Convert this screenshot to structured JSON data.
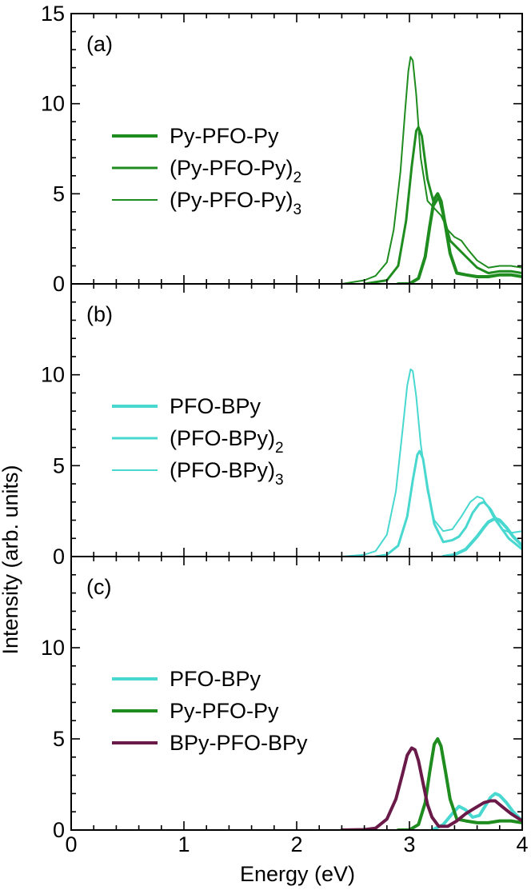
{
  "chart_data": {
    "type": "line",
    "xlabel": "Energy (eV)",
    "ylabel": "Intensity (arb. units)",
    "xlim": [
      0,
      4
    ],
    "x_ticks": [
      "0",
      "1",
      "2",
      "3",
      "4"
    ],
    "colors": {
      "green": "#1e8c1e",
      "cyan": "#48d8d0",
      "maroon": "#6a1a48"
    },
    "panels": [
      {
        "label": "(a)",
        "ylim": [
          0,
          15
        ],
        "y_ticks": [
          {
            "value": 0,
            "label": "0"
          },
          {
            "value": 5,
            "label": "5"
          },
          {
            "value": 10,
            "label": "10"
          },
          {
            "value": 15,
            "label": "15"
          }
        ],
        "series": [
          {
            "name": "Py-PFO-Py",
            "sub": "",
            "color": "#1e8c1e",
            "width": 4,
            "x": [
              2.9,
              3.0,
              3.08,
              3.14,
              3.18,
              3.22,
              3.25,
              3.28,
              3.32,
              3.36,
              3.42,
              3.5,
              3.6,
              3.7,
              3.8,
              3.9,
              4.0
            ],
            "y": [
              0,
              0.01,
              0.3,
              1.5,
              3.2,
              4.7,
              5.0,
              4.6,
              3.2,
              1.7,
              0.6,
              0.5,
              0.4,
              0.4,
              0.5,
              0.5,
              0.4
            ]
          },
          {
            "name": "(Py-PFO-Py)",
            "sub": "2",
            "color": "#1e8c1e",
            "width": 3,
            "x": [
              2.6,
              2.8,
              2.9,
              2.97,
              3.02,
              3.06,
              3.08,
              3.11,
              3.16,
              3.22,
              3.26,
              3.3,
              3.36,
              3.44,
              3.52,
              3.6,
              3.7,
              3.8,
              3.9,
              4.0
            ],
            "y": [
              0,
              0.2,
              1.0,
              3.5,
              6.5,
              8.5,
              8.7,
              8.2,
              5.8,
              4.4,
              4.8,
              3.8,
              2.4,
              1.9,
              1.4,
              0.9,
              0.6,
              0.7,
              0.7,
              0.6
            ]
          },
          {
            "name": "(Py-PFO-Py)",
            "sub": "3",
            "color": "#1e8c1e",
            "width": 2,
            "x": [
              2.4,
              2.6,
              2.7,
              2.8,
              2.86,
              2.92,
              2.96,
              2.99,
              3.01,
              3.03,
              3.06,
              3.1,
              3.16,
              3.22,
              3.28,
              3.34,
              3.4,
              3.46,
              3.52,
              3.6,
              3.7,
              3.8,
              3.9,
              4.0
            ],
            "y": [
              0,
              0.2,
              0.45,
              1.2,
              3.0,
              6.2,
              9.5,
              11.8,
              12.6,
              12.4,
              10.5,
              7.0,
              4.6,
              4.2,
              3.8,
              3.0,
              2.6,
              2.4,
              1.9,
              1.3,
              0.9,
              1.0,
              1.0,
              0.9
            ]
          }
        ]
      },
      {
        "label": "(b)",
        "ylim": [
          0,
          15
        ],
        "y_ticks": [
          {
            "value": 0,
            "label": "0"
          },
          {
            "value": 5,
            "label": "5"
          },
          {
            "value": 10,
            "label": "10"
          }
        ],
        "series": [
          {
            "name": "PFO-BPy",
            "sub": "",
            "color": "#48d8d0",
            "width": 4,
            "x": [
              3.3,
              3.4,
              3.5,
              3.6,
              3.66,
              3.7,
              3.76,
              3.8,
              3.86,
              3.92,
              4.0
            ],
            "y": [
              0,
              0.1,
              0.4,
              1.1,
              1.6,
              1.9,
              2.1,
              2.0,
              1.6,
              1.1,
              0.6
            ]
          },
          {
            "name": "(PFO-BPy)",
            "sub": "2",
            "color": "#48d8d0",
            "width": 3,
            "x": [
              2.7,
              2.8,
              2.9,
              2.98,
              3.03,
              3.07,
              3.09,
              3.12,
              3.16,
              3.22,
              3.3,
              3.38,
              3.44,
              3.5,
              3.56,
              3.62,
              3.66,
              3.72,
              3.8,
              3.88,
              4.0
            ],
            "y": [
              0,
              0.1,
              0.6,
              2.2,
              4.2,
              5.6,
              5.8,
              5.4,
              3.8,
              1.8,
              0.8,
              0.9,
              1.1,
              1.6,
              2.4,
              2.9,
              3.0,
              2.6,
              1.7,
              1.0,
              0.4
            ]
          },
          {
            "name": "(PFO-BPy)",
            "sub": "3",
            "color": "#48d8d0",
            "width": 2,
            "x": [
              2.4,
              2.6,
              2.7,
              2.8,
              2.88,
              2.94,
              2.98,
              3.01,
              3.03,
              3.06,
              3.1,
              3.16,
              3.22,
              3.3,
              3.38,
              3.46,
              3.54,
              3.6,
              3.65,
              3.7,
              3.76,
              3.82,
              3.9,
              4.0
            ],
            "y": [
              0,
              0.1,
              0.3,
              1.2,
              3.6,
              7.0,
              9.4,
              10.3,
              10.2,
              8.8,
              6.2,
              3.6,
              2.0,
              1.4,
              1.5,
              2.2,
              3.0,
              3.3,
              3.2,
              2.7,
              2.0,
              1.5,
              1.3,
              1.4
            ]
          }
        ]
      },
      {
        "label": "(c)",
        "ylim": [
          0,
          15
        ],
        "y_ticks": [
          {
            "value": 0,
            "label": "0"
          },
          {
            "value": 5,
            "label": "5"
          },
          {
            "value": 10,
            "label": "10"
          }
        ],
        "series": [
          {
            "name": "PFO-BPy",
            "sub": "",
            "color": "#48d8d0",
            "width": 4,
            "x": [
              3.2,
              3.3,
              3.38,
              3.44,
              3.5,
              3.56,
              3.62,
              3.68,
              3.72,
              3.76,
              3.8,
              3.86,
              3.92,
              4.0
            ],
            "y": [
              0,
              0.3,
              0.9,
              1.3,
              1.1,
              0.7,
              0.8,
              1.4,
              1.8,
              2.0,
              1.9,
              1.5,
              1.0,
              0.5
            ]
          },
          {
            "name": "Py-PFO-Py",
            "sub": "",
            "color": "#1e8c1e",
            "width": 4,
            "x": [
              2.9,
              3.0,
              3.08,
              3.14,
              3.18,
              3.22,
              3.25,
              3.28,
              3.32,
              3.36,
              3.42,
              3.5,
              3.6,
              3.7,
              3.8,
              3.9,
              4.0
            ],
            "y": [
              0,
              0.01,
              0.3,
              1.5,
              3.2,
              4.7,
              5.0,
              4.6,
              3.2,
              1.7,
              0.6,
              0.5,
              0.4,
              0.4,
              0.5,
              0.5,
              0.4
            ]
          },
          {
            "name": "BPy-PFO-BPy",
            "sub": "",
            "color": "#6a1a48",
            "width": 4,
            "x": [
              2.4,
              2.6,
              2.7,
              2.8,
              2.88,
              2.94,
              2.98,
              3.02,
              3.05,
              3.08,
              3.12,
              3.16,
              3.2,
              3.26,
              3.34,
              3.42,
              3.5,
              3.58,
              3.66,
              3.72,
              3.76,
              3.82,
              3.9,
              4.0
            ],
            "y": [
              0,
              0.02,
              0.1,
              0.6,
              1.7,
              3.1,
              4.1,
              4.5,
              4.4,
              3.8,
              2.6,
              1.4,
              0.7,
              0.2,
              0.2,
              0.5,
              0.9,
              1.2,
              1.5,
              1.6,
              1.6,
              1.3,
              0.9,
              0.5
            ]
          }
        ]
      }
    ]
  }
}
